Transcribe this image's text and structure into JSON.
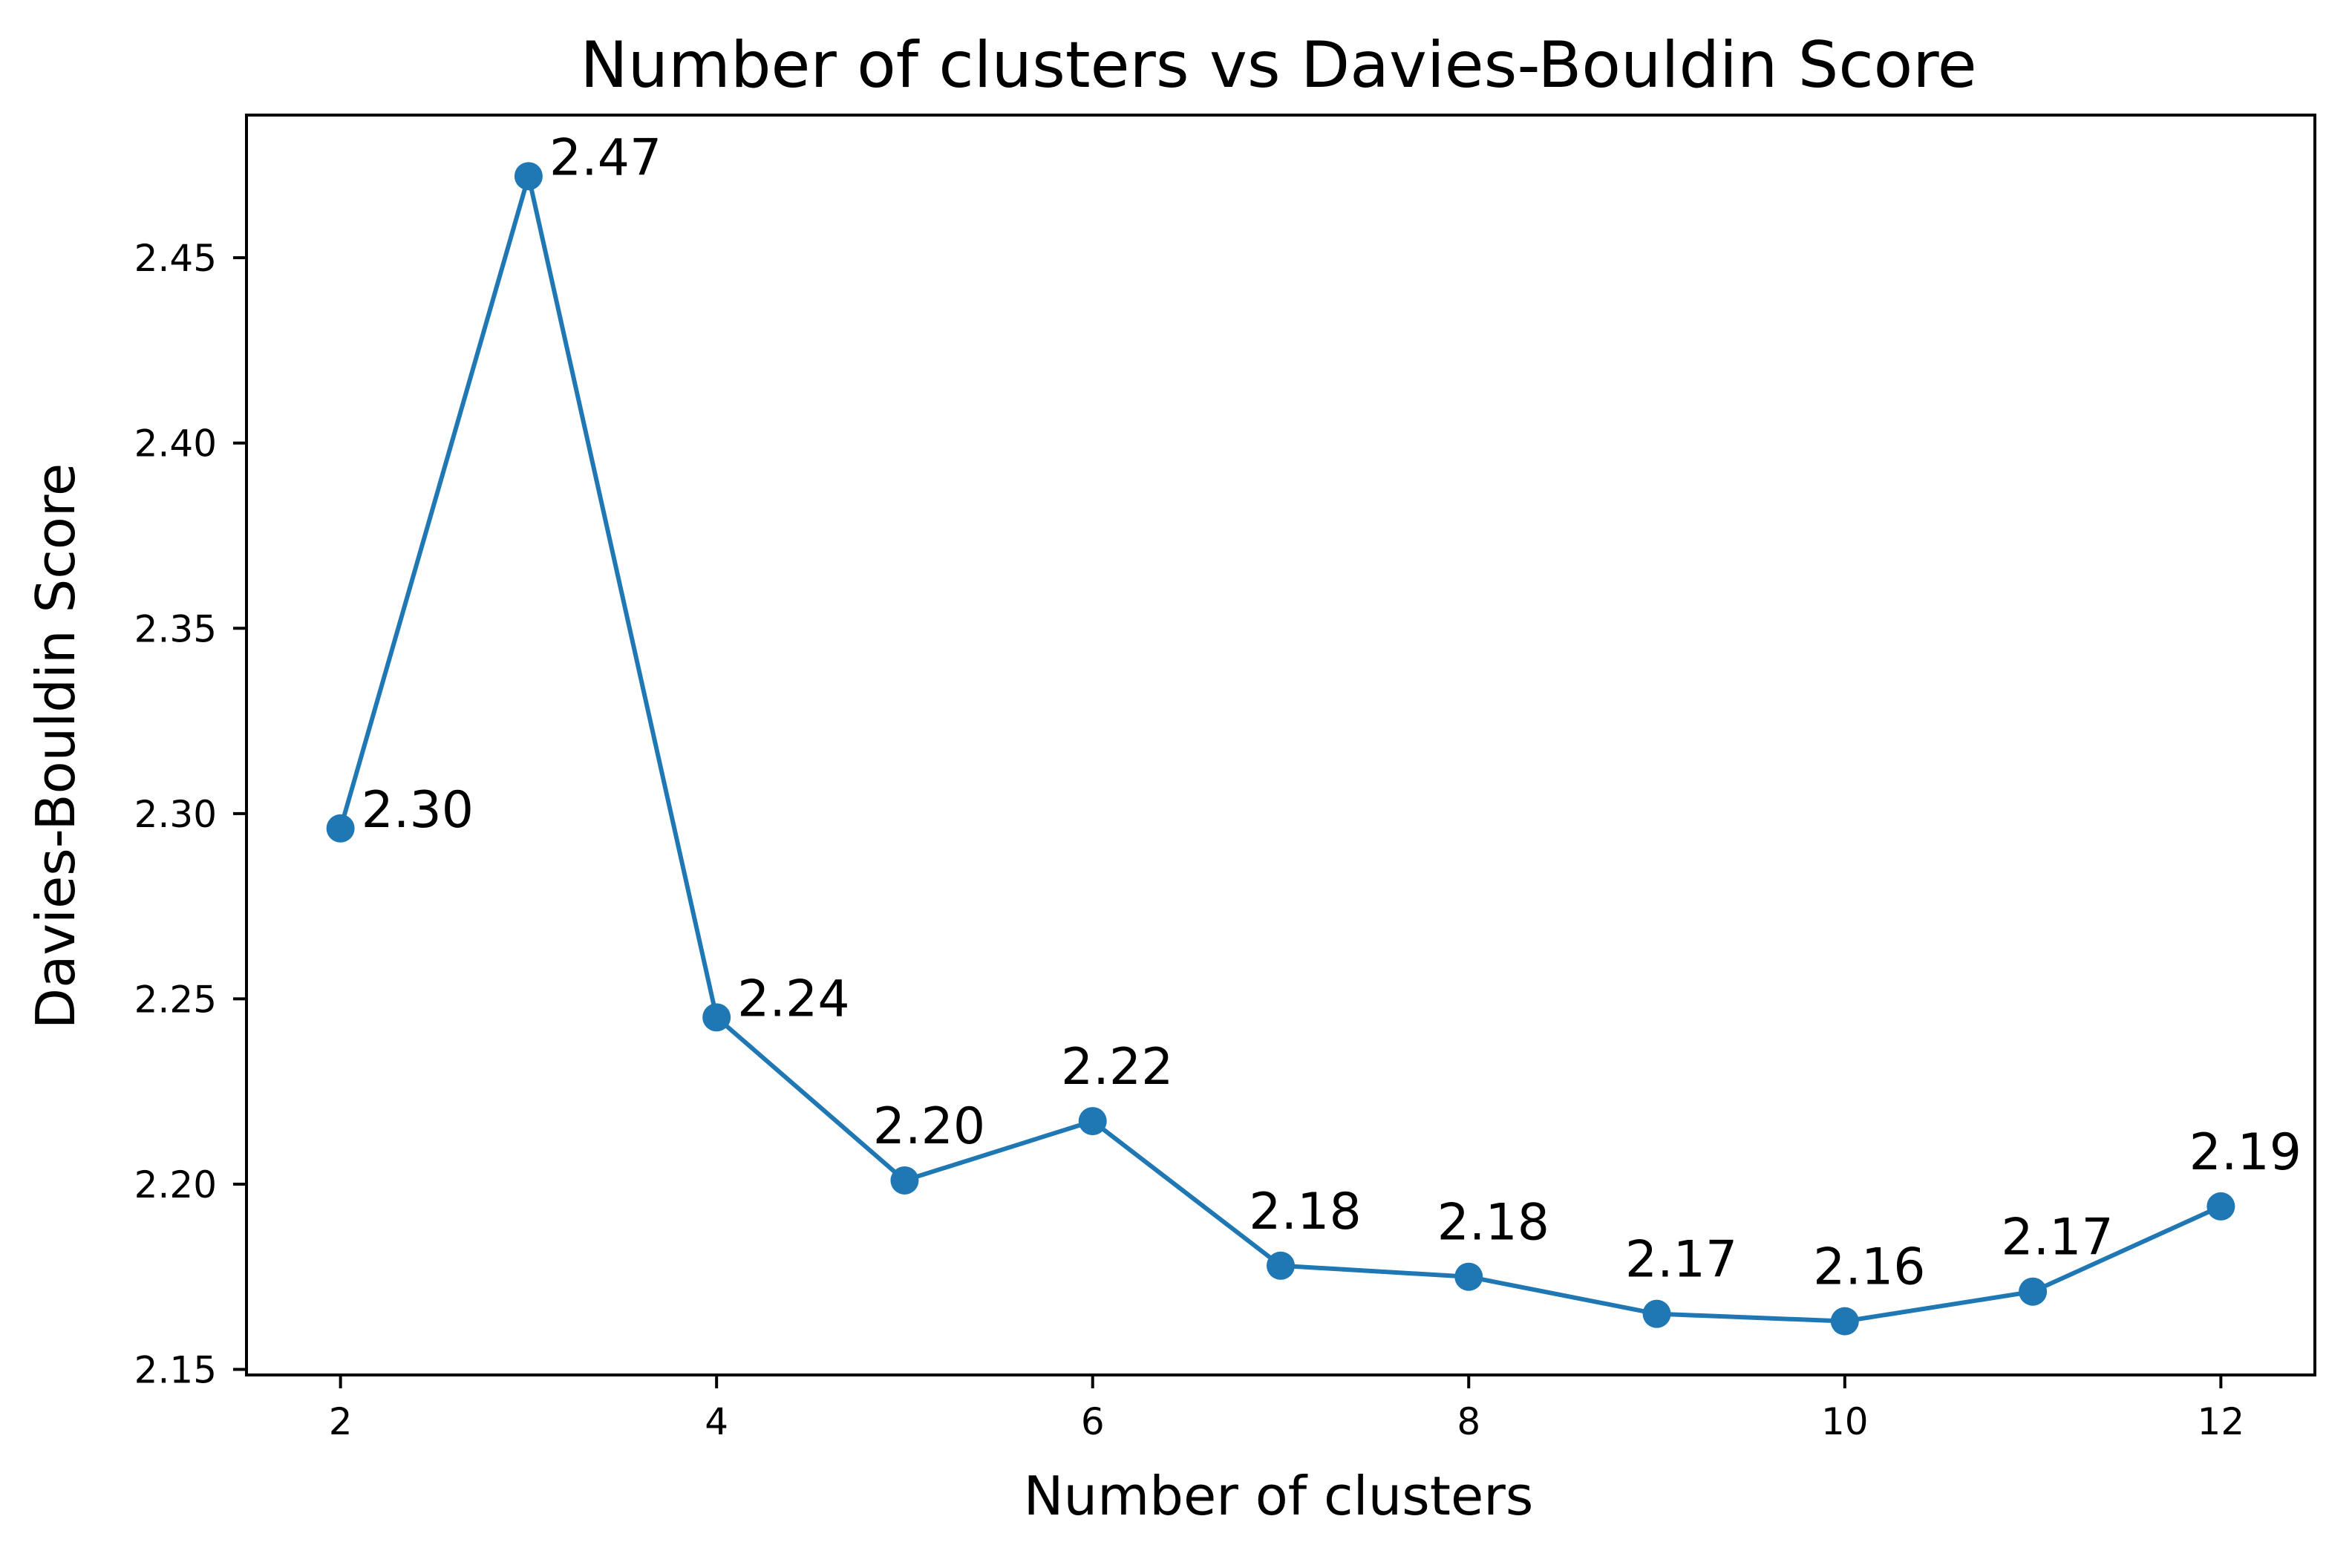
{
  "chart_data": {
    "type": "line",
    "title": "Number of clusters vs Davies-Bouldin Score",
    "xlabel": "Number of clusters",
    "ylabel": "Davies-Bouldin Score",
    "x": [
      2,
      3,
      4,
      5,
      6,
      7,
      8,
      9,
      10,
      11,
      12
    ],
    "values": [
      2.296,
      2.472,
      2.245,
      2.201,
      2.217,
      2.178,
      2.175,
      2.165,
      2.163,
      2.171,
      2.194
    ],
    "data_labels": [
      "2.30",
      "2.47",
      "2.24",
      "2.20",
      "2.22",
      "2.18",
      "2.18",
      "2.17",
      "2.16",
      "2.17",
      "2.19"
    ],
    "xlim": [
      1.5,
      12.5
    ],
    "ylim": [
      2.1485,
      2.4885
    ],
    "xticks": [
      2,
      4,
      6,
      8,
      10,
      12
    ],
    "xtick_labels": [
      "2",
      "4",
      "6",
      "8",
      "10",
      "12"
    ],
    "yticks": [
      2.15,
      2.2,
      2.25,
      2.3,
      2.35,
      2.4,
      2.45
    ],
    "ytick_labels": [
      "2.15",
      "2.20",
      "2.25",
      "2.30",
      "2.35",
      "2.40",
      "2.45"
    ],
    "grid": false,
    "legend": "none",
    "line_color": "#1f77b4",
    "marker": "circle"
  }
}
